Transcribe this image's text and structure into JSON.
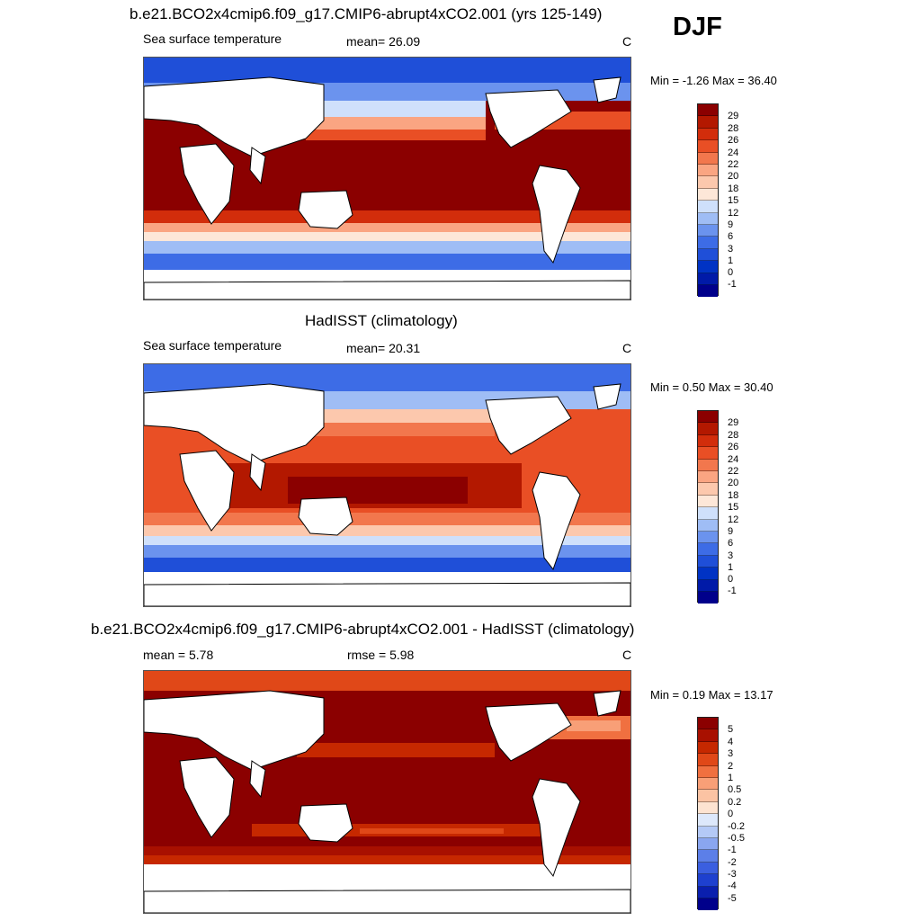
{
  "season": "DJF",
  "colors": {
    "levels": [
      "#00008b",
      "#001aa8",
      "#0033c4",
      "#1f4fd8",
      "#3d6ce6",
      "#6b93ee",
      "#9fbdf5",
      "#cfe0fb",
      "#fde7d8",
      "#fcc8ad",
      "#faa582",
      "#f2774d",
      "#e94f25",
      "#d22d0b",
      "#b31800",
      "#8b0000"
    ],
    "diff": [
      "#00008b",
      "#0a1fae",
      "#1e40cf",
      "#3b5fe0",
      "#5c7fe8",
      "#8aa6f0",
      "#b4c9f6",
      "#dde8fb",
      "#fde3d1",
      "#fbc3a3",
      "#f89f77",
      "#f07040",
      "#e04818",
      "#c62800",
      "#a81000",
      "#8b0000"
    ],
    "land": "#ffffff",
    "coast": "#000000"
  },
  "panels": [
    {
      "title": "b.e21.BCO2x4cmip6.f09_g17.CMIP6-abrupt4xCO2.001 (yrs 125-149)",
      "left": "Sea surface temperature",
      "mid": "mean=  26.09",
      "right": "C",
      "minmax": "Min =  -1.26 Max =  36.40",
      "map_key": "model",
      "ticks": [
        "29",
        "28",
        "26",
        "24",
        "22",
        "20",
        "18",
        "15",
        "12",
        "9",
        "6",
        "3",
        "1",
        "0",
        "-1"
      ]
    },
    {
      "title": "HadISST (climatology)",
      "left": "Sea surface temperature",
      "mid": "mean=  20.31",
      "right": "C",
      "minmax": "Min =   0.50 Max =  30.40",
      "map_key": "obs",
      "ticks": [
        "29",
        "28",
        "26",
        "24",
        "22",
        "20",
        "18",
        "15",
        "12",
        "9",
        "6",
        "3",
        "1",
        "0",
        "-1"
      ]
    },
    {
      "title": "b.e21.BCO2x4cmip6.f09_g17.CMIP6-abrupt4xCO2.001 - HadISST (climatology)",
      "left": "mean =   5.78",
      "mid": "rmse =   5.98",
      "right": "C",
      "minmax": "Min =   0.19 Max =  13.17",
      "map_key": "diff",
      "ticks": [
        "5",
        "4",
        "3",
        "2",
        "1",
        "0.5",
        "0.2",
        "0",
        "-0.2",
        "-0.5",
        "-1",
        "-2",
        "-3",
        "-4",
        "-5"
      ]
    }
  ]
}
